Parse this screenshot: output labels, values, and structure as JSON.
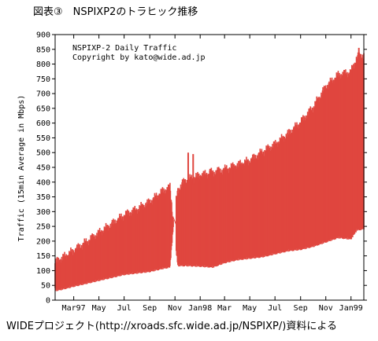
{
  "figure": {
    "title": "図表③　NSPIXP2のトラヒック推移",
    "source": "WIDEプロジェクト(http://xroads.sfc.wide.ad.jp/NSPIXP/)資料による"
  },
  "colors": {
    "series": "#e0463f",
    "axis": "#000000"
  },
  "chart_data": {
    "type": "area",
    "title": "NSPIXP-2 Daily Traffic",
    "subtitle": "Copyright by kato@wide.ad.jp",
    "xlabel": "",
    "ylabel": "Traffic (15min Average in Mbps)",
    "ylim": [
      0,
      900
    ],
    "yticks": [
      0,
      50,
      100,
      150,
      200,
      250,
      300,
      350,
      400,
      450,
      500,
      550,
      600,
      650,
      700,
      750,
      800,
      850,
      900
    ],
    "xlim": [
      "1997-01-15",
      "1999-02-01"
    ],
    "xticks": [
      {
        "label": "Mar97",
        "date": "1997-03-01"
      },
      {
        "label": "May",
        "date": "1997-05-01"
      },
      {
        "label": "Jul",
        "date": "1997-07-01"
      },
      {
        "label": "Sep",
        "date": "1997-09-01"
      },
      {
        "label": "Nov",
        "date": "1997-11-01"
      },
      {
        "label": "Jan98",
        "date": "1998-01-01"
      },
      {
        "label": "Mar",
        "date": "1998-03-01"
      },
      {
        "label": "May",
        "date": "1998-05-01"
      },
      {
        "label": "Jul",
        "date": "1998-07-01"
      },
      {
        "label": "Sep",
        "date": "1998-09-01"
      },
      {
        "label": "Nov",
        "date": "1998-11-01"
      },
      {
        "label": "Jan99",
        "date": "1999-01-01"
      }
    ],
    "series": [
      {
        "upper": [
          [
            "1997-01-15",
            125
          ],
          [
            "1997-02-01",
            140
          ],
          [
            "1997-03-01",
            165
          ],
          [
            "1997-04-01",
            195
          ],
          [
            "1997-05-01",
            225
          ],
          [
            "1997-06-01",
            255
          ],
          [
            "1997-07-01",
            285
          ],
          [
            "1997-08-01",
            305
          ],
          [
            "1997-09-01",
            330
          ],
          [
            "1997-10-01",
            365
          ],
          [
            "1997-10-20",
            380
          ],
          [
            "1997-10-28",
            270
          ],
          [
            "1997-11-08",
            370
          ],
          [
            "1997-11-20",
            395
          ],
          [
            "1997-12-01",
            405
          ],
          [
            "1998-01-01",
            420
          ],
          [
            "1998-02-01",
            430
          ],
          [
            "1998-03-01",
            440
          ],
          [
            "1998-04-01",
            455
          ],
          [
            "1998-05-01",
            470
          ],
          [
            "1998-06-01",
            500
          ],
          [
            "1998-07-01",
            525
          ],
          [
            "1998-08-01",
            560
          ],
          [
            "1998-09-01",
            600
          ],
          [
            "1998-10-01",
            650
          ],
          [
            "1998-11-01",
            720
          ],
          [
            "1998-12-01",
            760
          ],
          [
            "1999-01-01",
            770
          ],
          [
            "1999-01-15",
            820
          ],
          [
            "1999-02-01",
            830
          ]
        ],
        "lower": [
          [
            "1997-01-15",
            35
          ],
          [
            "1997-02-01",
            40
          ],
          [
            "1997-03-01",
            50
          ],
          [
            "1997-04-01",
            60
          ],
          [
            "1997-05-01",
            70
          ],
          [
            "1997-06-01",
            80
          ],
          [
            "1997-07-01",
            90
          ],
          [
            "1997-08-01",
            95
          ],
          [
            "1997-09-01",
            100
          ],
          [
            "1997-10-01",
            110
          ],
          [
            "1997-10-20",
            115
          ],
          [
            "1997-10-28",
            250
          ],
          [
            "1997-11-08",
            120
          ],
          [
            "1997-11-20",
            120
          ],
          [
            "1997-12-01",
            120
          ],
          [
            "1998-01-01",
            118
          ],
          [
            "1998-02-01",
            115
          ],
          [
            "1998-03-01",
            130
          ],
          [
            "1998-04-01",
            140
          ],
          [
            "1998-05-01",
            145
          ],
          [
            "1998-06-01",
            150
          ],
          [
            "1998-07-01",
            160
          ],
          [
            "1998-08-01",
            170
          ],
          [
            "1998-09-01",
            175
          ],
          [
            "1998-10-01",
            185
          ],
          [
            "1998-11-01",
            200
          ],
          [
            "1998-12-01",
            215
          ],
          [
            "1999-01-01",
            210
          ],
          [
            "1999-01-15",
            240
          ],
          [
            "1999-02-01",
            245
          ]
        ],
        "data_gap": [
          "1997-10-28",
          "1997-11-04"
        ],
        "spikes": [
          {
            "date": "1997-12-03",
            "value": 500
          },
          {
            "date": "1997-12-15",
            "value": 495
          },
          {
            "date": "1998-01-25",
            "value": 445
          },
          {
            "date": "1999-01-20",
            "value": 855
          }
        ]
      }
    ]
  }
}
